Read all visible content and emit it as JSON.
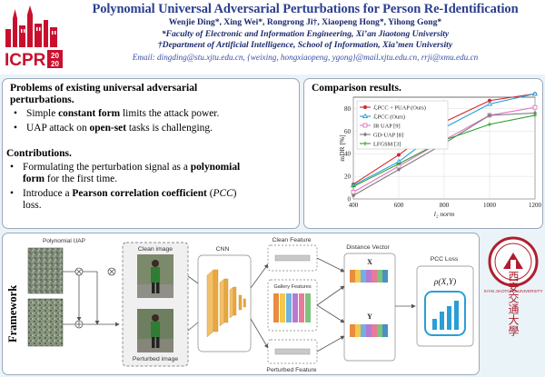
{
  "header": {
    "title": "Polynomial Universal Adversarial Perturbations for Person Re-Identification",
    "authors": "Wenjie Ding*, Xing Wei*, Rongrong Ji†, Xiaopeng Hong*, Yihong Gong*",
    "affil1": "*Faculty of Electronic and Information Engineering, Xi’an Jiaotong University",
    "affil2": "†Department of Artificial Intelligence, School of Information, Xia’men University",
    "emails": "Email: dingding@stu.xjtu.edu.cn, {weixing, hongxiaopeng, ygong}@mail.xjtu.edu.cn, rrji@xmu.edu.cn",
    "logo_text": "ICPR",
    "logo_year_top": "20",
    "logo_year_bottom": "20"
  },
  "problems": {
    "title_line1": "Problems of existing universal adversarial",
    "title_line2": "perturbations.",
    "b1_pre": "Simple ",
    "b1_bold": "constant form",
    "b1_post": " limits the attack power.",
    "b2_pre": "UAP attack on ",
    "b2_bold": "open-set",
    "b2_post": " tasks is challenging."
  },
  "contributions": {
    "title": "Contributions.",
    "b1_line1_pre": "Formulating the perturbation signal as a ",
    "b1_line1_bold": "polynomial",
    "b1_line2_bold": "form",
    "b1_line2_post": " for the first time.",
    "b2_line1_pre": "Introduce a ",
    "b2_line1_bold": "Pearson correlation coefficient",
    "b2_line1_mid": " (",
    "b2_line1_ital": "PCC",
    "b2_line1_post": ")",
    "b2_line2": "loss."
  },
  "comparison": {
    "title": "Comparison results."
  },
  "chart_data": {
    "type": "line",
    "title": "",
    "xlabel": "l₂ norm",
    "ylabel": "mDR [%]",
    "x": [
      400,
      600,
      800,
      1000,
      1200
    ],
    "xlim": [
      400,
      1200
    ],
    "ylim": [
      0,
      90
    ],
    "xticks": [
      "400",
      "600",
      "800",
      "1000",
      "1200"
    ],
    "yticks": [
      "0",
      "20",
      "40",
      "60",
      "80"
    ],
    "grid": true,
    "legend_position": "top-left",
    "series": [
      {
        "name": "ℒPCC + PUAP (Ours)",
        "color": "#d62728",
        "marker": "circle",
        "values": [
          13,
          39,
          68,
          87,
          93
        ]
      },
      {
        "name": "ℒPCC (Ours)",
        "color": "#1f9fd8",
        "marker": "triangle",
        "values": [
          12,
          33,
          63,
          84,
          93
        ]
      },
      {
        "name": "IR UAP [9]",
        "color": "#e377c2",
        "marker": "square",
        "values": [
          6,
          29,
          52,
          74,
          81
        ]
      },
      {
        "name": "GD-UAP [8]",
        "color": "#7f7f7f",
        "marker": "diamond",
        "values": [
          3,
          26,
          49,
          74,
          76
        ]
      },
      {
        "name": "LFGSM [3]",
        "color": "#2ca02c",
        "marker": "plus",
        "values": [
          11,
          31,
          52,
          66,
          74
        ]
      }
    ]
  },
  "framework": {
    "label": "Framework",
    "poly_uap": "Polynomial UAP",
    "clean_image": "Clean image",
    "perturbed_image": "Perturbed image",
    "cnn": "CNN",
    "clean_feature": "Clean Feature",
    "gallery_features": "Gallery Features",
    "perturbed_feature": "Perturbed Feature",
    "distance_vector": "Distance Vector",
    "x_label": "X",
    "y_label": "Y",
    "pcc_loss": "PCC Loss",
    "rho": "ρ(X,Y)"
  },
  "seal": {
    "motto": "西安交通大學",
    "university": "XI'AN JIAOTONG UNIVERSITY"
  }
}
